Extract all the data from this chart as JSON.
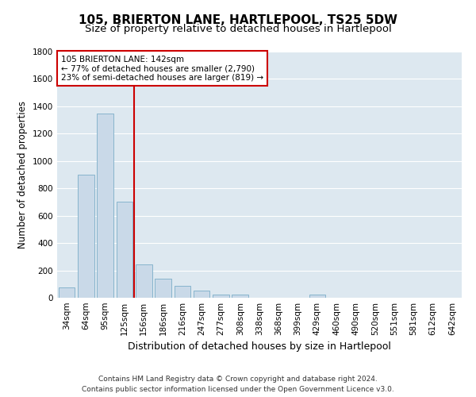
{
  "title": "105, BRIERTON LANE, HARTLEPOOL, TS25 5DW",
  "subtitle": "Size of property relative to detached houses in Hartlepool",
  "xlabel": "Distribution of detached houses by size in Hartlepool",
  "ylabel": "Number of detached properties",
  "categories": [
    "34sqm",
    "64sqm",
    "95sqm",
    "125sqm",
    "156sqm",
    "186sqm",
    "216sqm",
    "247sqm",
    "277sqm",
    "308sqm",
    "338sqm",
    "368sqm",
    "399sqm",
    "429sqm",
    "460sqm",
    "490sqm",
    "520sqm",
    "551sqm",
    "581sqm",
    "612sqm",
    "642sqm"
  ],
  "values": [
    75,
    900,
    1350,
    700,
    245,
    140,
    85,
    50,
    25,
    25,
    0,
    0,
    0,
    25,
    0,
    0,
    0,
    0,
    0,
    0,
    0
  ],
  "bar_color": "#c9d9e8",
  "bar_edge_color": "#7badc8",
  "vline_x": 3.5,
  "vline_color": "#cc0000",
  "annotation_text": "105 BRIERTON LANE: 142sqm\n← 77% of detached houses are smaller (2,790)\n23% of semi-detached houses are larger (819) →",
  "annotation_box_color": "#ffffff",
  "annotation_box_edge_color": "#cc0000",
  "ylim": [
    0,
    1800
  ],
  "yticks": [
    0,
    200,
    400,
    600,
    800,
    1000,
    1200,
    1400,
    1600,
    1800
  ],
  "background_color": "#dde8f0",
  "grid_color": "#ffffff",
  "fig_background": "#ffffff",
  "footer_line1": "Contains HM Land Registry data © Crown copyright and database right 2024.",
  "footer_line2": "Contains public sector information licensed under the Open Government Licence v3.0.",
  "title_fontsize": 11,
  "subtitle_fontsize": 9.5,
  "xlabel_fontsize": 9,
  "ylabel_fontsize": 8.5,
  "tick_fontsize": 7.5,
  "footer_fontsize": 6.5
}
